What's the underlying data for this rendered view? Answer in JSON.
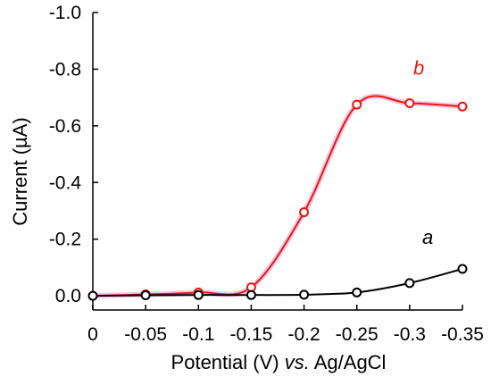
{
  "chart_data": {
    "type": "line",
    "xlabel_parts": [
      "Potential (V) ",
      "vs.",
      " Ag/AgCl"
    ],
    "ylabel": "Current (µA)",
    "x": [
      0,
      -0.05,
      -0.1,
      -0.15,
      -0.2,
      -0.25,
      -0.3,
      -0.35
    ],
    "x_tick_labels": [
      "0",
      "-0.05",
      "-0.1",
      "-0.15",
      "-0.2",
      "-0.25",
      "-0.3",
      "-0.35"
    ],
    "y_tick_values": [
      0.0,
      -0.2,
      -0.4,
      -0.6,
      -0.8,
      -1.0
    ],
    "y_tick_labels": [
      "0.0",
      "-0.2",
      "-0.4",
      "-0.6",
      "-0.8",
      "-1.0"
    ],
    "xlim": [
      0,
      -0.35
    ],
    "ylim": [
      0.05,
      -1.0
    ],
    "grid": false,
    "series": [
      {
        "name": "a",
        "color": "#000000",
        "values": [
          0.0,
          -0.002,
          -0.003,
          -0.003,
          -0.004,
          -0.012,
          -0.045,
          -0.095
        ]
      },
      {
        "name": "b",
        "color": "#e8170f",
        "glow_color": "#f2b6e0",
        "values": [
          0.0,
          -0.005,
          -0.012,
          -0.03,
          -0.295,
          -0.675,
          -0.68,
          -0.668
        ]
      }
    ]
  }
}
